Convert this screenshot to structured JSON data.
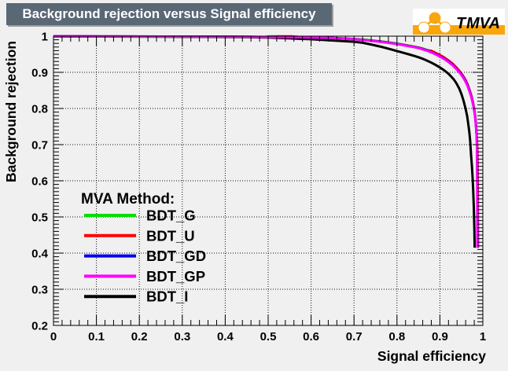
{
  "title": {
    "text": "Background rejection versus Signal efficiency"
  },
  "logo": {
    "t": "T",
    "mva": "MVA"
  },
  "colors": {
    "canvas_bg": "#f0f0f0",
    "title_bg": "#5a6875",
    "title_fg": "#ffffff",
    "frame": "#000000",
    "grid": "#111111",
    "logo_orange": "#f9a60a",
    "logo_t": "#e8250f",
    "logo_mva": "#2b3a94"
  },
  "axes": {
    "x": {
      "label": "Signal efficiency",
      "ticks": [
        "0",
        "0.1",
        "0.2",
        "0.3",
        "0.4",
        "0.5",
        "0.6",
        "0.7",
        "0.8",
        "0.9",
        "1"
      ]
    },
    "y": {
      "label": "Background rejection",
      "ticks": [
        "0.2",
        "0.3",
        "0.4",
        "0.5",
        "0.6",
        "0.7",
        "0.8",
        "0.9",
        "1"
      ]
    }
  },
  "legend": {
    "header": "MVA Method:",
    "items": [
      {
        "label": "BDT_G",
        "color": "#00e000"
      },
      {
        "label": "BDT_U",
        "color": "#ff0000"
      },
      {
        "label": "BDT_GD",
        "color": "#0000ee"
      },
      {
        "label": "BDT_GP",
        "color": "#ff00ff"
      },
      {
        "label": "BDT_I",
        "color": "#000000"
      }
    ]
  },
  "chart_data": {
    "type": "line",
    "title": "Background rejection versus Signal efficiency",
    "xlabel": "Signal efficiency",
    "ylabel": "Background rejection",
    "xlim": [
      0,
      1
    ],
    "ylim": [
      0.2,
      1.0
    ],
    "x_major_step": 0.1,
    "y_major_step": 0.1,
    "x_minor_divisions": 5,
    "y_minor_divisions": 10,
    "grid": "dotted",
    "legend_position": "center-left",
    "draw_order": [
      0,
      1,
      2,
      4,
      3
    ],
    "series": [
      {
        "name": "BDT_G",
        "color": "#00e000",
        "points": [
          [
            0,
            0.9993
          ],
          [
            0.05,
            0.9993
          ],
          [
            0.1,
            0.9992
          ],
          [
            0.15,
            0.9991
          ],
          [
            0.2,
            0.999
          ],
          [
            0.25,
            0.9989
          ],
          [
            0.3,
            0.9987
          ],
          [
            0.35,
            0.9985
          ],
          [
            0.4,
            0.9983
          ],
          [
            0.45,
            0.998
          ],
          [
            0.495,
            0.9978
          ],
          [
            0.5,
            0.9996
          ],
          [
            0.522,
            0.9995
          ],
          [
            0.53,
            0.9976
          ],
          [
            0.55,
            0.9974
          ],
          [
            0.6,
            0.9968
          ],
          [
            0.65,
            0.9955
          ],
          [
            0.7,
            0.9925
          ],
          [
            0.72,
            0.9906
          ],
          [
            0.74,
            0.9882
          ],
          [
            0.76,
            0.9858
          ],
          [
            0.78,
            0.9829
          ],
          [
            0.8,
            0.9795
          ],
          [
            0.82,
            0.9757
          ],
          [
            0.84,
            0.9713
          ],
          [
            0.85,
            0.969
          ],
          [
            0.86,
            0.9658
          ],
          [
            0.87,
            0.962
          ],
          [
            0.88,
            0.9578
          ],
          [
            0.89,
            0.9525
          ],
          [
            0.9,
            0.9468
          ],
          [
            0.91,
            0.9398
          ],
          [
            0.92,
            0.932
          ],
          [
            0.93,
            0.9225
          ],
          [
            0.94,
            0.9105
          ],
          [
            0.945,
            0.9038
          ],
          [
            0.95,
            0.8962
          ],
          [
            0.955,
            0.8878
          ],
          [
            0.96,
            0.8775
          ],
          [
            0.965,
            0.8645
          ],
          [
            0.97,
            0.8478
          ],
          [
            0.9735,
            0.8342
          ],
          [
            0.976,
            0.8218
          ],
          [
            0.978,
            0.8105
          ],
          [
            0.98,
            0.797
          ],
          [
            0.9815,
            0.785
          ],
          [
            0.983,
            0.7695
          ],
          [
            0.9845,
            0.748
          ],
          [
            0.9855,
            0.7265
          ],
          [
            0.9865,
            0.7
          ],
          [
            0.987,
            0.665
          ],
          [
            0.9875,
            0.6
          ],
          [
            0.988,
            0.52
          ],
          [
            0.9883,
            0.415
          ]
        ]
      },
      {
        "name": "BDT_U",
        "color": "#ff0000",
        "points": [
          [
            0,
            0.9993
          ],
          [
            0.05,
            0.9993
          ],
          [
            0.1,
            0.9992
          ],
          [
            0.15,
            0.9991
          ],
          [
            0.2,
            0.999
          ],
          [
            0.25,
            0.9989
          ],
          [
            0.3,
            0.9987
          ],
          [
            0.35,
            0.9985
          ],
          [
            0.4,
            0.9983
          ],
          [
            0.45,
            0.998
          ],
          [
            0.5,
            0.9977
          ],
          [
            0.525,
            0.9995
          ],
          [
            0.555,
            0.9994
          ],
          [
            0.58,
            0.9972
          ],
          [
            0.6,
            0.9965
          ],
          [
            0.65,
            0.9951
          ],
          [
            0.7,
            0.9918
          ],
          [
            0.72,
            0.9898
          ],
          [
            0.74,
            0.9874
          ],
          [
            0.76,
            0.985
          ],
          [
            0.78,
            0.982
          ],
          [
            0.8,
            0.9786
          ],
          [
            0.82,
            0.9748
          ],
          [
            0.84,
            0.9705
          ],
          [
            0.85,
            0.9682
          ],
          [
            0.86,
            0.9648
          ],
          [
            0.87,
            0.961
          ],
          [
            0.88,
            0.9595
          ],
          [
            0.89,
            0.954
          ],
          [
            0.9,
            0.948
          ],
          [
            0.91,
            0.941
          ],
          [
            0.92,
            0.933
          ],
          [
            0.93,
            0.9235
          ],
          [
            0.94,
            0.9115
          ],
          [
            0.945,
            0.9045
          ],
          [
            0.95,
            0.897
          ],
          [
            0.955,
            0.8885
          ],
          [
            0.96,
            0.878
          ],
          [
            0.965,
            0.865
          ],
          [
            0.97,
            0.848
          ],
          [
            0.9735,
            0.8345
          ],
          [
            0.976,
            0.822
          ],
          [
            0.978,
            0.8108
          ],
          [
            0.98,
            0.7975
          ],
          [
            0.9815,
            0.7855
          ],
          [
            0.983,
            0.77
          ],
          [
            0.9845,
            0.7485
          ],
          [
            0.9855,
            0.727
          ],
          [
            0.987,
            0.7
          ],
          [
            0.9878,
            0.655
          ],
          [
            0.9883,
            0.58
          ],
          [
            0.9886,
            0.49
          ],
          [
            0.9888,
            0.415
          ]
        ]
      },
      {
        "name": "BDT_GD",
        "color": "#0000ee",
        "points": [
          [
            0,
            0.9994
          ],
          [
            0.05,
            0.9994
          ],
          [
            0.1,
            0.9993
          ],
          [
            0.15,
            0.9992
          ],
          [
            0.2,
            0.9991
          ],
          [
            0.25,
            0.999
          ],
          [
            0.3,
            0.9988
          ],
          [
            0.35,
            0.9986
          ],
          [
            0.4,
            0.9984
          ],
          [
            0.45,
            0.9981
          ],
          [
            0.5,
            0.9977
          ],
          [
            0.55,
            0.9971
          ],
          [
            0.6,
            0.9964
          ],
          [
            0.65,
            0.9951
          ],
          [
            0.7,
            0.9918
          ],
          [
            0.72,
            0.9899
          ],
          [
            0.74,
            0.9874
          ],
          [
            0.76,
            0.9849
          ],
          [
            0.78,
            0.9819
          ],
          [
            0.8,
            0.9785
          ],
          [
            0.82,
            0.9746
          ],
          [
            0.84,
            0.9701
          ],
          [
            0.85,
            0.9677
          ],
          [
            0.86,
            0.9643
          ],
          [
            0.87,
            0.9604
          ],
          [
            0.88,
            0.956
          ],
          [
            0.89,
            0.9506
          ],
          [
            0.9,
            0.9447
          ],
          [
            0.91,
            0.9378
          ],
          [
            0.92,
            0.9299
          ],
          [
            0.93,
            0.9205
          ],
          [
            0.94,
            0.9086
          ],
          [
            0.945,
            0.9017
          ],
          [
            0.95,
            0.8943
          ],
          [
            0.955,
            0.8858
          ],
          [
            0.96,
            0.8754
          ],
          [
            0.965,
            0.8625
          ],
          [
            0.97,
            0.8456
          ],
          [
            0.9735,
            0.8321
          ],
          [
            0.976,
            0.8196
          ],
          [
            0.978,
            0.8081
          ],
          [
            0.98,
            0.7946
          ],
          [
            0.9815,
            0.7826
          ],
          [
            0.983,
            0.7671
          ],
          [
            0.9845,
            0.7456
          ],
          [
            0.9855,
            0.7241
          ],
          [
            0.9865,
            0.7
          ],
          [
            0.9869,
            0.655
          ],
          [
            0.9872,
            0.58
          ],
          [
            0.9875,
            0.49
          ],
          [
            0.9877,
            0.415
          ]
        ]
      },
      {
        "name": "BDT_GP",
        "color": "#ff00ff",
        "points": [
          [
            0,
            0.9993
          ],
          [
            0.05,
            0.9993
          ],
          [
            0.1,
            0.9992
          ],
          [
            0.15,
            0.9991
          ],
          [
            0.2,
            0.999
          ],
          [
            0.25,
            0.9989
          ],
          [
            0.3,
            0.9987
          ],
          [
            0.35,
            0.9985
          ],
          [
            0.4,
            0.9983
          ],
          [
            0.45,
            0.998
          ],
          [
            0.5,
            0.9976
          ],
          [
            0.55,
            0.997
          ],
          [
            0.6,
            0.9963
          ],
          [
            0.65,
            0.9949
          ],
          [
            0.7,
            0.9915
          ],
          [
            0.72,
            0.9895
          ],
          [
            0.74,
            0.987
          ],
          [
            0.76,
            0.9845
          ],
          [
            0.78,
            0.9815
          ],
          [
            0.8,
            0.978
          ],
          [
            0.82,
            0.974
          ],
          [
            0.84,
            0.9695
          ],
          [
            0.85,
            0.967
          ],
          [
            0.86,
            0.9635
          ],
          [
            0.87,
            0.9595
          ],
          [
            0.88,
            0.955
          ],
          [
            0.89,
            0.9495
          ],
          [
            0.9,
            0.9435
          ],
          [
            0.91,
            0.9365
          ],
          [
            0.92,
            0.9285
          ],
          [
            0.93,
            0.919
          ],
          [
            0.94,
            0.907
          ],
          [
            0.945,
            0.9
          ],
          [
            0.95,
            0.8925
          ],
          [
            0.955,
            0.884
          ],
          [
            0.96,
            0.8735
          ],
          [
            0.965,
            0.8605
          ],
          [
            0.97,
            0.8435
          ],
          [
            0.9735,
            0.83
          ],
          [
            0.976,
            0.8175
          ],
          [
            0.978,
            0.806
          ],
          [
            0.98,
            0.7925
          ],
          [
            0.9815,
            0.7805
          ],
          [
            0.983,
            0.765
          ],
          [
            0.9845,
            0.7435
          ],
          [
            0.9855,
            0.722
          ],
          [
            0.9862,
            0.7
          ],
          [
            0.9865,
            0.655
          ],
          [
            0.9868,
            0.58
          ],
          [
            0.987,
            0.48
          ],
          [
            0.9871,
            0.415
          ]
        ]
      },
      {
        "name": "BDT_I",
        "color": "#000000",
        "points": [
          [
            0,
            0.9991
          ],
          [
            0.1,
            0.9989
          ],
          [
            0.2,
            0.9986
          ],
          [
            0.3,
            0.9982
          ],
          [
            0.4,
            0.9977
          ],
          [
            0.45,
            0.9971
          ],
          [
            0.5,
            0.9962
          ],
          [
            0.55,
            0.994
          ],
          [
            0.6,
            0.9915
          ],
          [
            0.65,
            0.988
          ],
          [
            0.7,
            0.9845
          ],
          [
            0.72,
            0.9818
          ],
          [
            0.74,
            0.977
          ],
          [
            0.76,
            0.9715
          ],
          [
            0.78,
            0.9655
          ],
          [
            0.8,
            0.959
          ],
          [
            0.81,
            0.9557
          ],
          [
            0.82,
            0.9523
          ],
          [
            0.83,
            0.949
          ],
          [
            0.84,
            0.9455
          ],
          [
            0.85,
            0.9418
          ],
          [
            0.86,
            0.9375
          ],
          [
            0.87,
            0.9325
          ],
          [
            0.88,
            0.9268
          ],
          [
            0.89,
            0.9205
          ],
          [
            0.9,
            0.9135
          ],
          [
            0.91,
            0.9055
          ],
          [
            0.92,
            0.896
          ],
          [
            0.93,
            0.8835
          ],
          [
            0.935,
            0.876
          ],
          [
            0.94,
            0.8665
          ],
          [
            0.945,
            0.855
          ],
          [
            0.95,
            0.8405
          ],
          [
            0.955,
            0.822
          ],
          [
            0.96,
            0.798
          ],
          [
            0.9635,
            0.7785
          ],
          [
            0.966,
            0.7585
          ],
          [
            0.9685,
            0.735
          ],
          [
            0.9705,
            0.71
          ],
          [
            0.9725,
            0.672
          ],
          [
            0.9745,
            0.641
          ],
          [
            0.976,
            0.6125
          ],
          [
            0.9775,
            0.576
          ],
          [
            0.979,
            0.5285
          ],
          [
            0.9803,
            0.47
          ],
          [
            0.981,
            0.415
          ]
        ]
      }
    ]
  }
}
